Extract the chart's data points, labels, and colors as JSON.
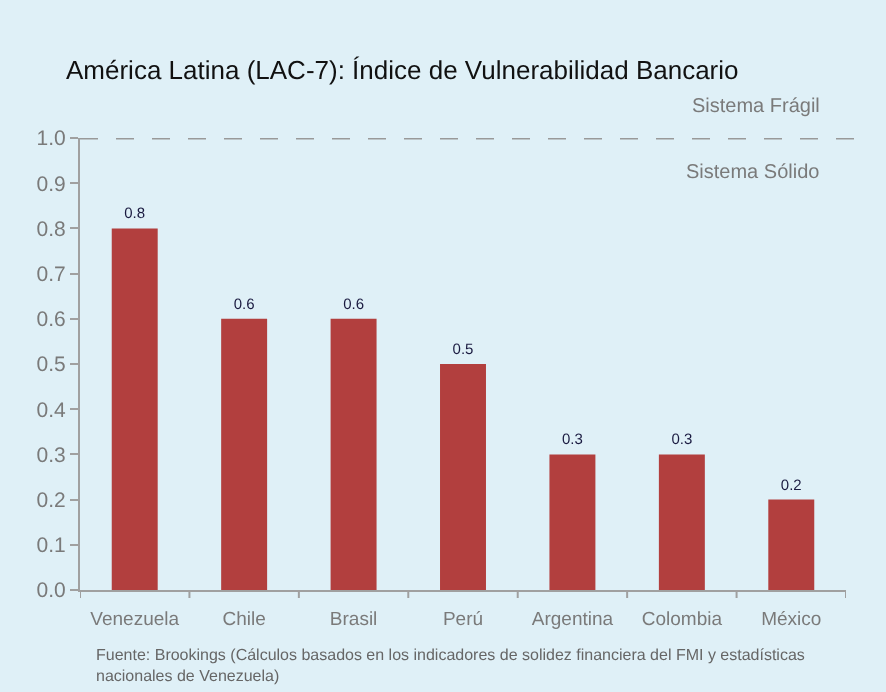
{
  "chart_data": {
    "type": "bar",
    "title": "América Latina (LAC-7): Índice de Vulnerabilidad Bancario",
    "categories": [
      "Venezuela",
      "Chile",
      "Brasil",
      "Perú",
      "Argentina",
      "Colombia",
      "México"
    ],
    "values": [
      0.8,
      0.6,
      0.6,
      0.5,
      0.3,
      0.3,
      0.2
    ],
    "color": "#b23f3e",
    "data_labels": true,
    "ylim": [
      0,
      1.0
    ],
    "yticks": [
      {
        "value": 0,
        "label": "0.0"
      },
      {
        "value": 0.1,
        "label": "0.1"
      },
      {
        "value": 0.2,
        "label": "0.2"
      },
      {
        "value": 0.3,
        "label": "0.3"
      },
      {
        "value": 0.4,
        "label": "0.4"
      },
      {
        "value": 0.5,
        "label": "0.5"
      },
      {
        "value": 0.6,
        "label": "0.6"
      },
      {
        "value": 0.7,
        "label": "0.7"
      },
      {
        "value": 0.8,
        "label": "0.8"
      },
      {
        "value": 0.9,
        "label": "0.9"
      },
      {
        "value": 1.0,
        "label": "1.0"
      }
    ],
    "ref_lines": [
      {
        "axis": "y",
        "value": 1.0,
        "color": "#999999",
        "line_style": "dashed"
      }
    ],
    "annotations": [
      "Sistema Frágil",
      "Sistema Sólido",
      "Fuente: Brookings (Cálculos basados en los indicadores de solidez financiera del FMI y estadísticas nacionales de Venezuela)"
    ]
  }
}
